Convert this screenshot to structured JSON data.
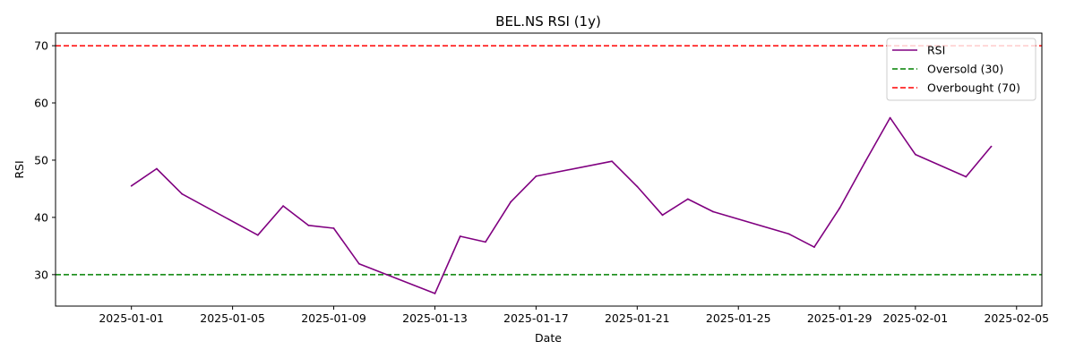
{
  "chart_data": {
    "type": "line",
    "title": "BEL.NS RSI (1y)",
    "xlabel": "Date",
    "ylabel": "RSI",
    "xlim": [
      "2024-12-29",
      "2025-02-06"
    ],
    "ylim": [
      24.5,
      72.2
    ],
    "x_ticks": [
      "2025-01-01",
      "2025-01-05",
      "2025-01-09",
      "2025-01-13",
      "2025-01-17",
      "2025-01-21",
      "2025-01-25",
      "2025-01-29",
      "2025-02-01",
      "2025-02-05"
    ],
    "y_ticks": [
      30,
      40,
      50,
      60,
      70
    ],
    "grid": false,
    "legend_position": "top-right",
    "series": [
      {
        "name": "RSI",
        "color": "#800080",
        "style": "solid",
        "points": [
          {
            "x": "2025-01-01",
            "y": 45.5
          },
          {
            "x": "2025-01-02",
            "y": 48.5
          },
          {
            "x": "2025-01-03",
            "y": 44.1
          },
          {
            "x": "2025-01-06",
            "y": 36.9
          },
          {
            "x": "2025-01-07",
            "y": 42.0
          },
          {
            "x": "2025-01-08",
            "y": 38.6
          },
          {
            "x": "2025-01-09",
            "y": 38.1
          },
          {
            "x": "2025-01-10",
            "y": 31.9
          },
          {
            "x": "2025-01-13",
            "y": 26.7
          },
          {
            "x": "2025-01-14",
            "y": 36.7
          },
          {
            "x": "2025-01-15",
            "y": 35.7
          },
          {
            "x": "2025-01-16",
            "y": 42.7
          },
          {
            "x": "2025-01-17",
            "y": 47.2
          },
          {
            "x": "2025-01-20",
            "y": 49.8
          },
          {
            "x": "2025-01-21",
            "y": 45.4
          },
          {
            "x": "2025-01-22",
            "y": 40.4
          },
          {
            "x": "2025-01-23",
            "y": 43.2
          },
          {
            "x": "2025-01-24",
            "y": 41.0
          },
          {
            "x": "2025-01-27",
            "y": 37.1
          },
          {
            "x": "2025-01-28",
            "y": 34.8
          },
          {
            "x": "2025-01-29",
            "y": 41.6
          },
          {
            "x": "2025-01-30",
            "y": 49.6
          },
          {
            "x": "2025-01-31",
            "y": 57.4
          },
          {
            "x": "2025-02-01",
            "y": 51.0
          },
          {
            "x": "2025-02-03",
            "y": 47.1
          },
          {
            "x": "2025-02-04",
            "y": 52.4
          }
        ]
      }
    ],
    "reference_lines": [
      {
        "name": "Oversold (30)",
        "y": 30,
        "color": "#008000",
        "style": "dashed"
      },
      {
        "name": "Overbought (70)",
        "y": 70,
        "color": "#ff0000",
        "style": "dashed"
      }
    ],
    "legend": [
      "RSI",
      "Oversold (30)",
      "Overbought (70)"
    ]
  }
}
